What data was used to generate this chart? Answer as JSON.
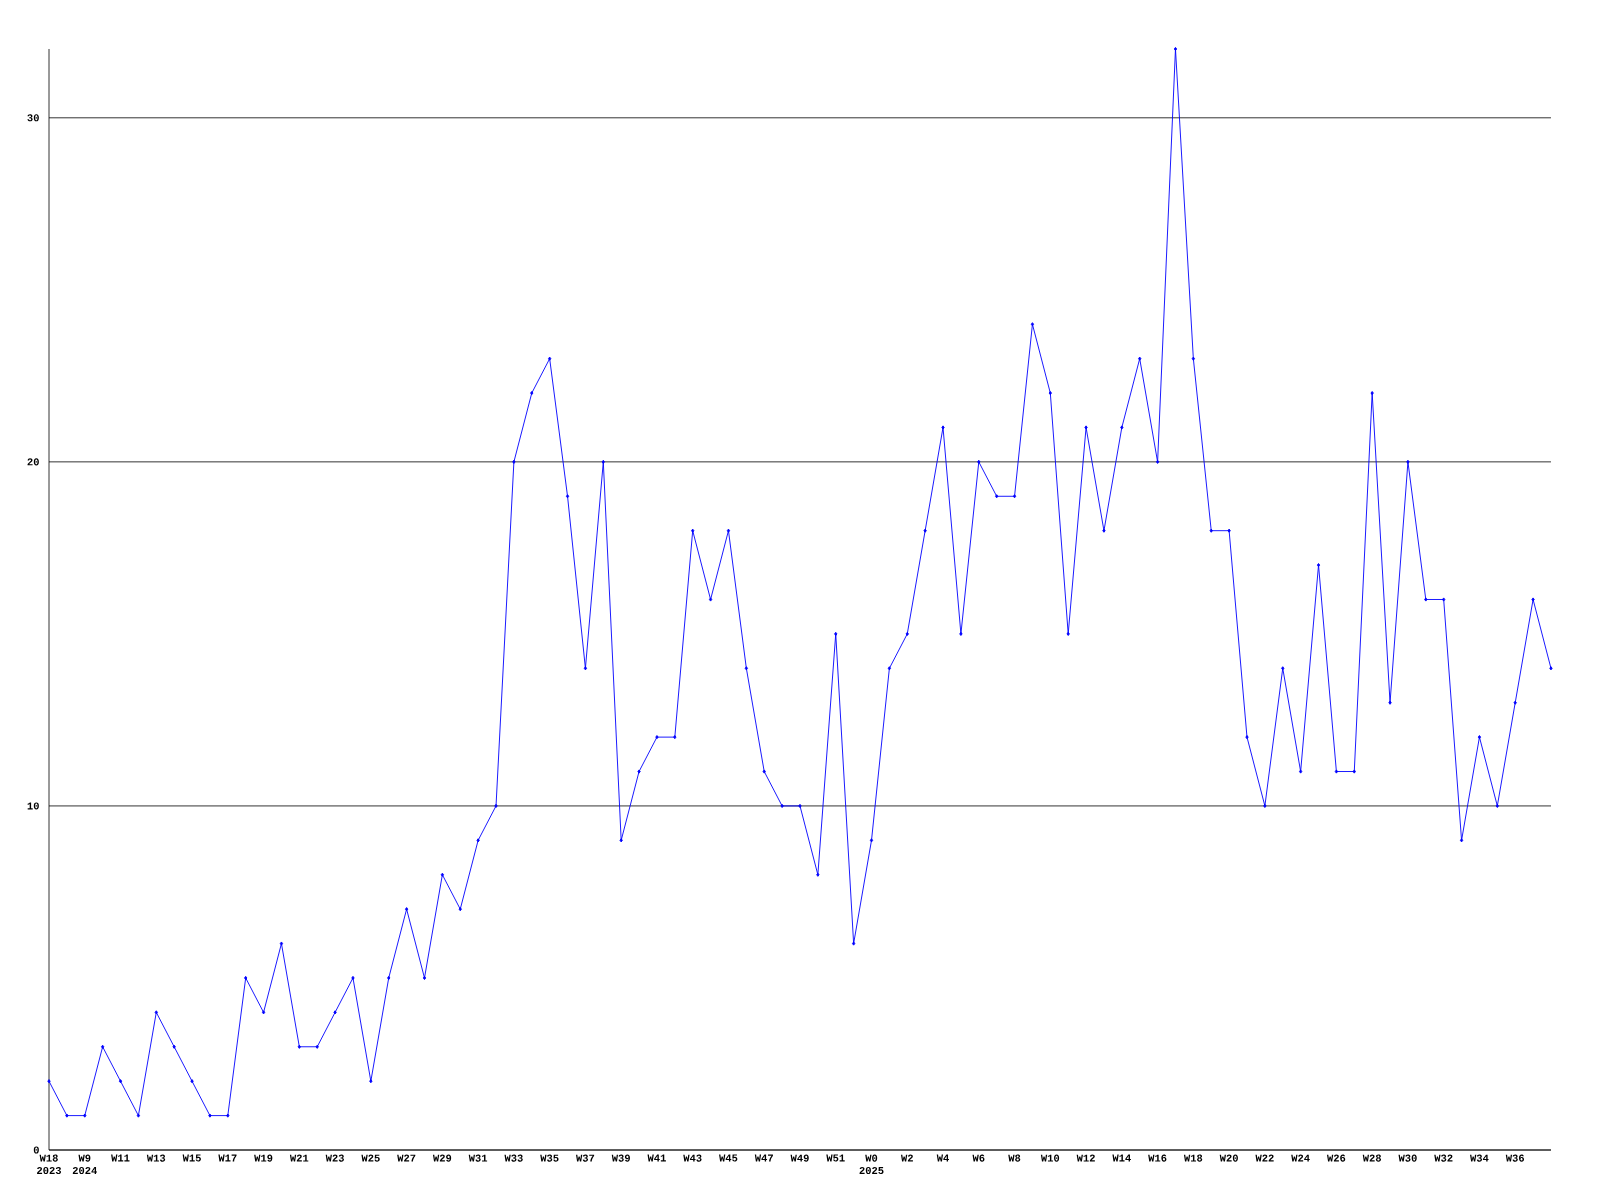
{
  "chart_data": {
    "type": "line",
    "categories": [
      "W18 2023",
      null,
      "W9 2024",
      null,
      "W11",
      null,
      "W13",
      null,
      "W15",
      null,
      "W17",
      null,
      "W19",
      null,
      "W21",
      null,
      "W23",
      null,
      "W25",
      null,
      "W27",
      null,
      "W29",
      null,
      "W31",
      null,
      "W33",
      null,
      "W35",
      null,
      "W37",
      null,
      "W39",
      null,
      "W41",
      null,
      "W43",
      null,
      "W45",
      null,
      "W47",
      null,
      "W49",
      null,
      "W51",
      null,
      "W0 2025",
      null,
      "W2",
      null,
      "W4",
      null,
      "W6",
      null,
      "W8",
      null,
      "W10",
      null,
      "W12",
      null,
      "W14",
      null,
      "W16",
      null,
      "W18",
      null,
      "W20",
      null,
      "W22",
      null,
      "W24",
      null,
      "W26",
      null,
      "W28",
      null,
      "W30",
      null,
      "W32",
      null,
      "W34",
      null,
      "W36",
      null,
      null
    ],
    "values": [
      2,
      1,
      1,
      3,
      2,
      1,
      4,
      3,
      2,
      1,
      1,
      5,
      4,
      6,
      3,
      3,
      4,
      5,
      2,
      5,
      7,
      5,
      8,
      7,
      9,
      10,
      20,
      22,
      23,
      19,
      14,
      20,
      9,
      11,
      12,
      12,
      18,
      16,
      18,
      14,
      11,
      10,
      10,
      8,
      15,
      6,
      9,
      14,
      15,
      18,
      21,
      15,
      20,
      19,
      19,
      24,
      22,
      15,
      21,
      18,
      21,
      23,
      20,
      32,
      23,
      18,
      18,
      12,
      10,
      14,
      11,
      17,
      11,
      11,
      22,
      13,
      20,
      16,
      16,
      9,
      12,
      10,
      13,
      16,
      14
    ],
    "color": "#0000ff",
    "ylim": [
      0,
      32
    ],
    "yticks": [
      0,
      10,
      20,
      30
    ],
    "grid": "y",
    "marker": "diamond",
    "line_style": "solid"
  }
}
